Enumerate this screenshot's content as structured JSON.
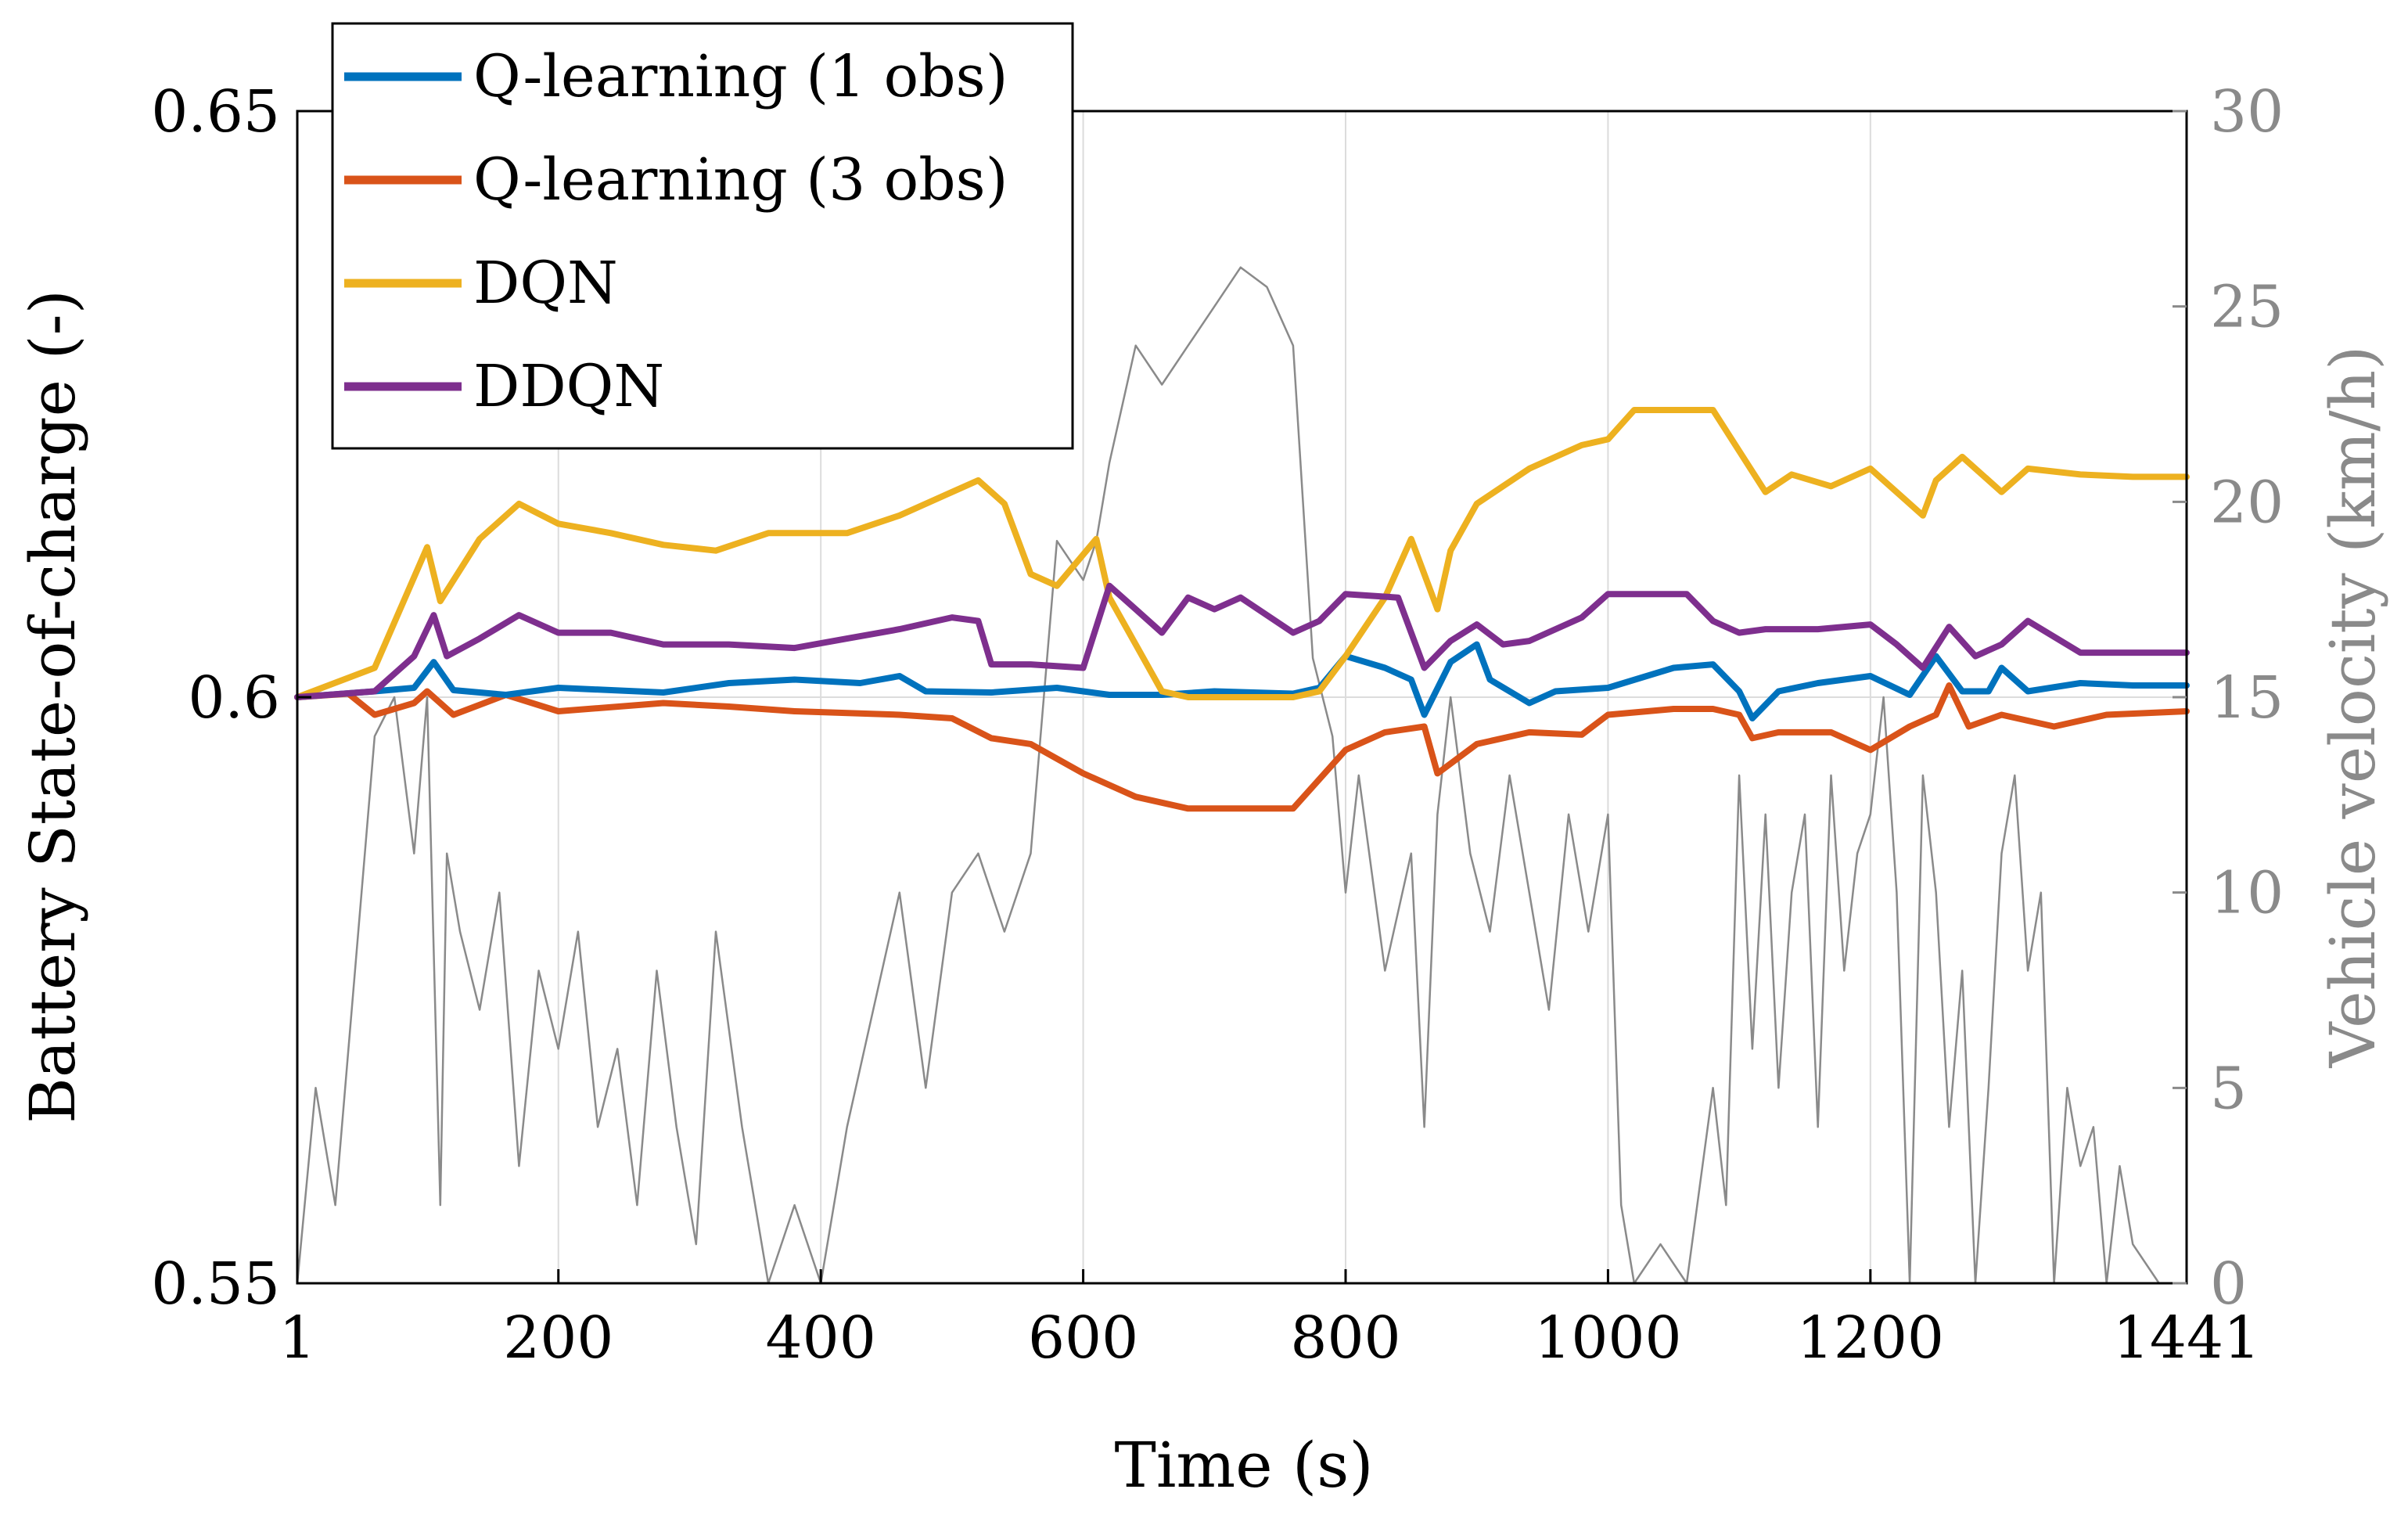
{
  "chart_data": {
    "type": "line",
    "xlabel": "Time (s)",
    "ylabel": "Battery State-of-charge (-)",
    "y2label": "Vehicle velocity (km/h)",
    "xlim": [
      1,
      1441
    ],
    "ylim": [
      0.55,
      0.65
    ],
    "y2lim": [
      0,
      30
    ],
    "x_ticks": [
      1,
      200,
      400,
      600,
      800,
      1000,
      1200,
      1441
    ],
    "x_tick_labels": [
      "1",
      "200",
      "400",
      "600",
      "800",
      "1000",
      "1200",
      "1441"
    ],
    "y_ticks": [
      0.55,
      0.6,
      0.65
    ],
    "y_tick_labels": [
      "0.55",
      "0.6",
      "0.65"
    ],
    "y2_ticks": [
      0,
      5,
      10,
      15,
      20,
      25,
      30
    ],
    "y2_tick_labels": [
      "0",
      "5",
      "10",
      "15",
      "20",
      "25",
      "30"
    ],
    "grid": true,
    "legend_position": "top-left",
    "series": [
      {
        "name": "Q-learning (1 obs)",
        "color": "#0072BD",
        "axis": "left",
        "x": [
          1,
          60,
          90,
          105,
          120,
          160,
          200,
          280,
          330,
          380,
          430,
          460,
          480,
          530,
          580,
          620,
          660,
          700,
          760,
          780,
          800,
          830,
          850,
          860,
          880,
          900,
          910,
          940,
          960,
          1000,
          1050,
          1080,
          1100,
          1110,
          1130,
          1160,
          1200,
          1230,
          1250,
          1270,
          1290,
          1300,
          1320,
          1360,
          1400,
          1441
        ],
        "values": [
          0.6,
          0.6005,
          0.6008,
          0.603,
          0.6006,
          0.6002,
          0.6008,
          0.6004,
          0.6012,
          0.6015,
          0.6012,
          0.6018,
          0.6005,
          0.6004,
          0.6008,
          0.6002,
          0.6002,
          0.6005,
          0.6003,
          0.6008,
          0.6035,
          0.6025,
          0.6015,
          0.5985,
          0.603,
          0.6045,
          0.6015,
          0.5995,
          0.6005,
          0.6008,
          0.6025,
          0.6028,
          0.6005,
          0.5982,
          0.6005,
          0.6012,
          0.6018,
          0.6002,
          0.6035,
          0.6005,
          0.6005,
          0.6025,
          0.6005,
          0.6012,
          0.601,
          0.601
        ]
      },
      {
        "name": "Q-learning (3 obs)",
        "color": "#D95319",
        "axis": "left",
        "x": [
          1,
          40,
          60,
          90,
          100,
          120,
          160,
          200,
          280,
          330,
          380,
          460,
          500,
          530,
          560,
          600,
          640,
          680,
          760,
          800,
          830,
          860,
          870,
          900,
          940,
          980,
          1000,
          1050,
          1080,
          1100,
          1110,
          1130,
          1170,
          1200,
          1230,
          1250,
          1260,
          1275,
          1300,
          1340,
          1380,
          1441
        ],
        "values": [
          0.6,
          0.6003,
          0.5985,
          0.5995,
          0.6005,
          0.5985,
          0.6002,
          0.5988,
          0.5995,
          0.5992,
          0.5988,
          0.5985,
          0.5982,
          0.5965,
          0.596,
          0.5935,
          0.5915,
          0.5905,
          0.5905,
          0.5955,
          0.597,
          0.5975,
          0.5935,
          0.596,
          0.597,
          0.5968,
          0.5985,
          0.599,
          0.599,
          0.5985,
          0.5965,
          0.597,
          0.597,
          0.5955,
          0.5975,
          0.5985,
          0.601,
          0.5975,
          0.5985,
          0.5975,
          0.5985,
          0.5988
        ]
      },
      {
        "name": "DQN",
        "color": "#EDB120",
        "axis": "left",
        "x": [
          1,
          60,
          100,
          110,
          140,
          170,
          200,
          240,
          280,
          320,
          360,
          420,
          460,
          500,
          520,
          540,
          560,
          580,
          610,
          620,
          640,
          660,
          680,
          700,
          760,
          780,
          800,
          830,
          850,
          870,
          880,
          900,
          940,
          980,
          1000,
          1020,
          1040,
          1080,
          1100,
          1120,
          1140,
          1170,
          1200,
          1240,
          1250,
          1270,
          1300,
          1320,
          1360,
          1400,
          1441
        ],
        "values": [
          0.6,
          0.6025,
          0.6128,
          0.6082,
          0.6135,
          0.6165,
          0.6148,
          0.614,
          0.613,
          0.6125,
          0.614,
          0.614,
          0.6155,
          0.6175,
          0.6185,
          0.6165,
          0.6105,
          0.6095,
          0.6135,
          0.6085,
          0.6045,
          0.6005,
          0.6,
          0.6,
          0.6,
          0.6005,
          0.6035,
          0.6085,
          0.6135,
          0.6075,
          0.6125,
          0.6165,
          0.6195,
          0.6215,
          0.622,
          0.6245,
          0.6245,
          0.6245,
          0.621,
          0.6175,
          0.619,
          0.618,
          0.6195,
          0.6155,
          0.6185,
          0.6205,
          0.6175,
          0.6195,
          0.619,
          0.6188,
          0.6188
        ]
      },
      {
        "name": "DDQN",
        "color": "#7E2F8E",
        "axis": "left",
        "x": [
          1,
          60,
          90,
          105,
          115,
          140,
          170,
          200,
          240,
          280,
          330,
          380,
          420,
          460,
          500,
          520,
          530,
          560,
          600,
          620,
          640,
          660,
          680,
          700,
          720,
          760,
          780,
          800,
          840,
          860,
          880,
          900,
          920,
          940,
          980,
          1000,
          1020,
          1060,
          1080,
          1100,
          1120,
          1160,
          1200,
          1220,
          1240,
          1260,
          1280,
          1300,
          1320,
          1360,
          1400,
          1441
        ],
        "values": [
          0.6,
          0.6005,
          0.6035,
          0.607,
          0.6035,
          0.605,
          0.607,
          0.6055,
          0.6055,
          0.6045,
          0.6045,
          0.6042,
          0.605,
          0.6058,
          0.6068,
          0.6065,
          0.6028,
          0.6028,
          0.6025,
          0.6095,
          0.6075,
          0.6055,
          0.6085,
          0.6075,
          0.6085,
          0.6055,
          0.6065,
          0.6088,
          0.6085,
          0.6025,
          0.6048,
          0.6062,
          0.6045,
          0.6048,
          0.6068,
          0.6088,
          0.6088,
          0.6088,
          0.6065,
          0.6055,
          0.6058,
          0.6058,
          0.6062,
          0.6045,
          0.6025,
          0.606,
          0.6035,
          0.6045,
          0.6065,
          0.6038,
          0.6038,
          0.6038
        ]
      },
      {
        "name": "Vehicle velocity",
        "color": "#8a8a8a",
        "axis": "right",
        "x": [
          1,
          15,
          30,
          45,
          60,
          75,
          90,
          100,
          110,
          115,
          125,
          140,
          155,
          170,
          185,
          200,
          215,
          230,
          245,
          260,
          275,
          290,
          305,
          320,
          340,
          360,
          380,
          400,
          420,
          440,
          460,
          480,
          500,
          520,
          540,
          560,
          580,
          600,
          610,
          620,
          640,
          660,
          680,
          700,
          720,
          740,
          760,
          775,
          790,
          800,
          810,
          830,
          850,
          860,
          870,
          880,
          895,
          910,
          925,
          940,
          955,
          970,
          985,
          1000,
          1010,
          1020,
          1040,
          1060,
          1080,
          1090,
          1100,
          1110,
          1120,
          1130,
          1140,
          1150,
          1160,
          1170,
          1180,
          1190,
          1200,
          1210,
          1220,
          1230,
          1240,
          1250,
          1260,
          1270,
          1280,
          1290,
          1300,
          1310,
          1320,
          1330,
          1340,
          1350,
          1360,
          1370,
          1380,
          1390,
          1400,
          1420,
          1441
        ],
        "values": [
          0,
          5,
          2,
          8,
          14,
          15,
          11,
          15,
          2,
          11,
          9,
          7,
          10,
          3,
          8,
          6,
          9,
          4,
          6,
          2,
          8,
          4,
          1,
          9,
          4,
          0,
          2,
          0,
          4,
          7,
          10,
          5,
          10,
          11,
          9,
          11,
          19,
          18,
          19,
          21,
          24,
          23,
          24,
          25,
          26,
          25.5,
          24,
          16,
          14,
          10,
          13,
          8,
          11,
          4,
          12,
          15,
          11,
          9,
          13,
          10,
          7,
          12,
          9,
          12,
          2,
          0,
          1,
          0,
          5,
          2,
          13,
          6,
          12,
          5,
          10,
          12,
          4,
          13,
          8,
          11,
          12,
          15,
          10,
          0,
          13,
          10,
          4,
          8,
          0,
          5,
          11,
          13,
          8,
          10,
          0,
          5,
          3,
          4,
          0,
          3,
          1,
          0,
          0
        ]
      }
    ]
  }
}
